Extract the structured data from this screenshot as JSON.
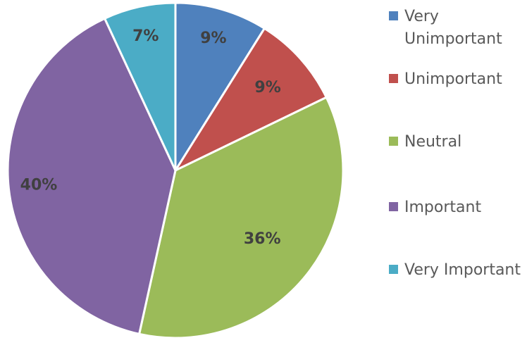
{
  "chart_data": {
    "type": "pie",
    "title": "",
    "categories": [
      "Very Unimportant",
      "Unimportant",
      "Neutral",
      "Important",
      "Very Important"
    ],
    "values": [
      9,
      9,
      36,
      40,
      7
    ],
    "value_labels": [
      "9%",
      "9%",
      "36%",
      "40%",
      "7%"
    ],
    "colors": [
      "#4f81bd",
      "#c0504d",
      "#9bbb59",
      "#8064a2",
      "#4bacc6"
    ],
    "legend_position": "right",
    "start_angle_deg": 0,
    "direction": "clockwise"
  }
}
